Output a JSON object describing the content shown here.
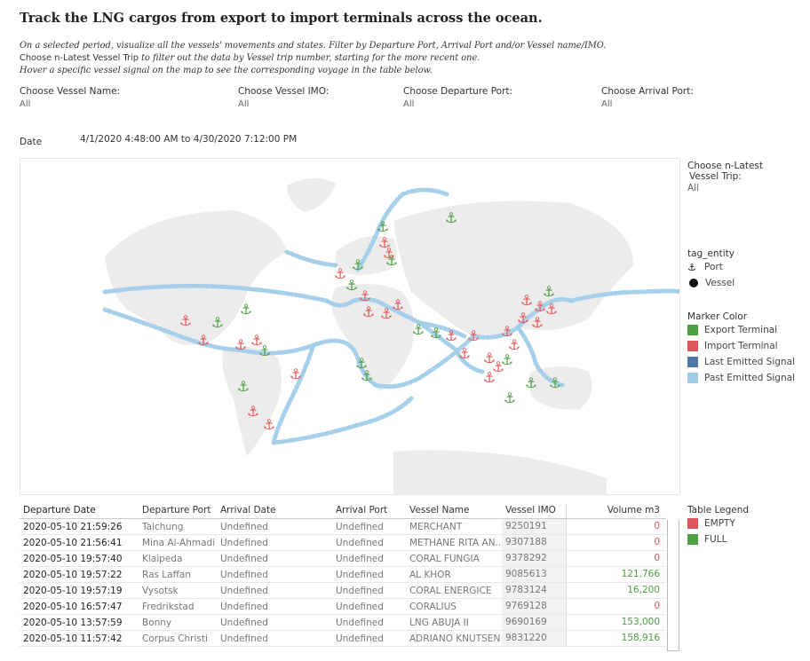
{
  "header": {
    "title": "Track the LNG cargos from export to import terminals across the ocean.",
    "line1": "On a selected period, visualize all the vessels' movements and states. Filter by Departure Port, Arrival Port and/or Vessel name/IMO.",
    "line2_bold": "Choose n-Latest Vessel Trip",
    "line2_rest": " to filter out the data by Vessel trip number, starting for the more recent one.",
    "line3": "Hover a specific vessel signal on the map to see the corresponding voyage in the table below."
  },
  "filters": {
    "vessel_name": {
      "label": "Choose Vessel Name:",
      "value": "All"
    },
    "vessel_imo": {
      "label": "Choose Vessel IMO:",
      "value": "All"
    },
    "departure_port": {
      "label": "Choose Departure Port:",
      "value": "All"
    },
    "arrival_port": {
      "label": "Choose Arrival Port:",
      "value": "All"
    }
  },
  "date": {
    "label": "Date",
    "range": "4/1/2020 4:48:00 AM to 4/30/2020 7:12:00 PM"
  },
  "side": {
    "n_latest": {
      "label_line1": "Choose n-Latest",
      "label_line2": "Vessel Trip:",
      "value": "All"
    },
    "tag_entity": {
      "title": "tag_entity",
      "port": "Port",
      "vessel": "Vessel"
    },
    "marker_color": {
      "title": "Marker Color",
      "items": [
        {
          "label": "Export Terminal",
          "color": "#4e9e43"
        },
        {
          "label": "Import Terminal",
          "color": "#e15759"
        },
        {
          "label": "Last Emitted Signal",
          "color": "#4e79a7"
        },
        {
          "label": "Past Emitted Signal",
          "color": "#a0cbe8"
        }
      ]
    },
    "table_legend": {
      "title": "Table Legend",
      "items": [
        {
          "label": "EMPTY",
          "color": "#e15759"
        },
        {
          "label": "FULL",
          "color": "#4e9e43"
        }
      ]
    }
  },
  "table": {
    "columns": [
      "Departure Date",
      "Departure Port",
      "Arrival Date",
      "Arrival Port",
      "Vessel Name",
      "Vessel IMO",
      "Volume m3"
    ],
    "rows": [
      {
        "dep_date": "2020-05-10 21:59:26",
        "dep_port": "Taichung",
        "arr_date": "Undefined",
        "arr_port": "Undefined",
        "vessel": "MERCHANT",
        "imo": "9250191",
        "volume": "0",
        "status": "EMPTY"
      },
      {
        "dep_date": "2020-05-10 21:56:41",
        "dep_port": "Mina Al-Ahmadi",
        "arr_date": "Undefined",
        "arr_port": "Undefined",
        "vessel": "METHANE RITA AN..",
        "imo": "9307188",
        "volume": "0",
        "status": "EMPTY"
      },
      {
        "dep_date": "2020-05-10 19:57:40",
        "dep_port": "Klaipeda",
        "arr_date": "Undefined",
        "arr_port": "Undefined",
        "vessel": "CORAL FUNGIA",
        "imo": "9378292",
        "volume": "0",
        "status": "EMPTY"
      },
      {
        "dep_date": "2020-05-10 19:57:22",
        "dep_port": "Ras Laffan",
        "arr_date": "Undefined",
        "arr_port": "Undefined",
        "vessel": "AL KHOR",
        "imo": "9085613",
        "volume": "121,766",
        "status": "FULL"
      },
      {
        "dep_date": "2020-05-10 19:57:19",
        "dep_port": "Vysotsk",
        "arr_date": "Undefined",
        "arr_port": "Undefined",
        "vessel": "CORAL ENERGICE",
        "imo": "9783124",
        "volume": "16,200",
        "status": "FULL"
      },
      {
        "dep_date": "2020-05-10 16:57:47",
        "dep_port": "Fredrikstad",
        "arr_date": "Undefined",
        "arr_port": "Undefined",
        "vessel": "CORALIUS",
        "imo": "9769128",
        "volume": "0",
        "status": "EMPTY"
      },
      {
        "dep_date": "2020-05-10 13:57:59",
        "dep_port": "Bonny",
        "arr_date": "Undefined",
        "arr_port": "Undefined",
        "vessel": "LNG ABUJA II",
        "imo": "9690169",
        "volume": "153,000",
        "status": "FULL"
      },
      {
        "dep_date": "2020-05-10 11:57:42",
        "dep_port": "Corpus Christi",
        "arr_date": "Undefined",
        "arr_port": "Undefined",
        "vessel": "ADRIANO KNUTSEN",
        "imo": "9831220",
        "volume": "158,916",
        "status": "FULL"
      }
    ]
  }
}
